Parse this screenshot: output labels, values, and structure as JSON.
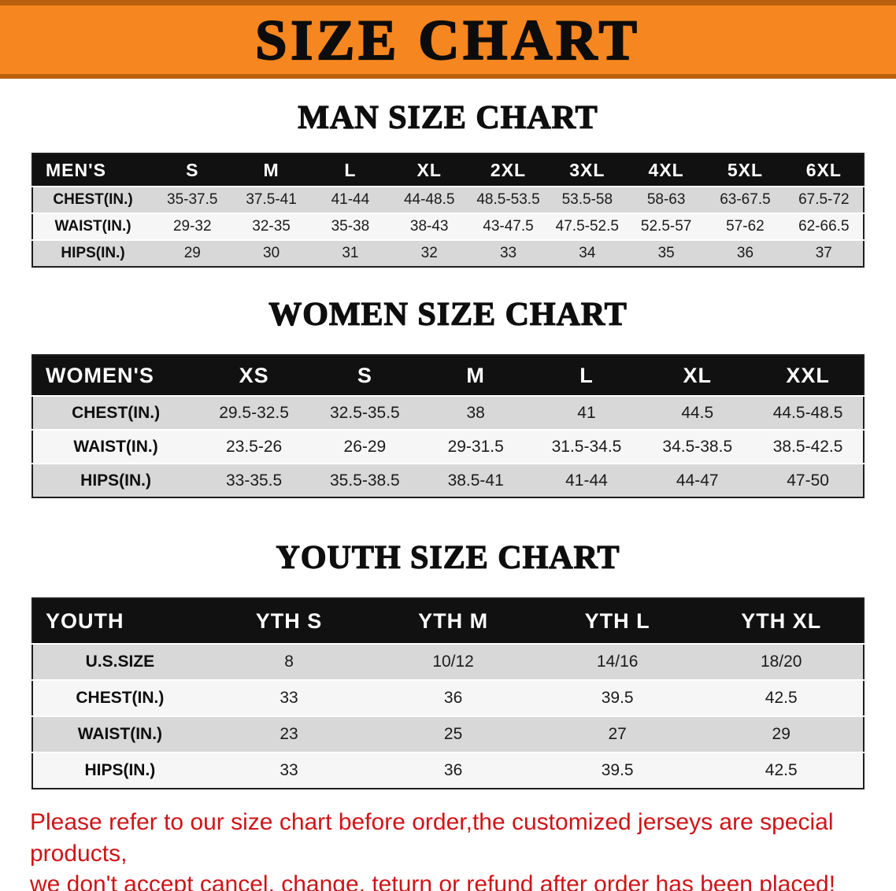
{
  "banner": {
    "title": "SIZE CHART"
  },
  "colors": {
    "banner_bg": "#f6861f",
    "banner_edge": "#b9600e",
    "header_bg": "#111111",
    "row_shade": "#d8d8d8",
    "row_plain": "#f6f6f6",
    "footer_text": "#d01317"
  },
  "chart_data": [
    {
      "type": "table",
      "title": "MAN SIZE CHART",
      "columns": [
        "MEN'S",
        "S",
        "M",
        "L",
        "XL",
        "2XL",
        "3XL",
        "4XL",
        "5XL",
        "6XL"
      ],
      "rows": [
        [
          "CHEST(IN.)",
          "35-37.5",
          "37.5-41",
          "41-44",
          "44-48.5",
          "48.5-53.5",
          "53.5-58",
          "58-63",
          "63-67.5",
          "67.5-72"
        ],
        [
          "WAIST(IN.)",
          "29-32",
          "32-35",
          "35-38",
          "38-43",
          "43-47.5",
          "47.5-52.5",
          "52.5-57",
          "57-62",
          "62-66.5"
        ],
        [
          "HIPS(IN.)",
          "29",
          "30",
          "31",
          "32",
          "33",
          "34",
          "35",
          "36",
          "37"
        ]
      ]
    },
    {
      "type": "table",
      "title": "WOMEN SIZE CHART",
      "columns": [
        "WOMEN'S",
        "XS",
        "S",
        "M",
        "L",
        "XL",
        "XXL"
      ],
      "rows": [
        [
          "CHEST(IN.)",
          "29.5-32.5",
          "32.5-35.5",
          "38",
          "41",
          "44.5",
          "44.5-48.5"
        ],
        [
          "WAIST(IN.)",
          "23.5-26",
          "26-29",
          "29-31.5",
          "31.5-34.5",
          "34.5-38.5",
          "38.5-42.5"
        ],
        [
          "HIPS(IN.)",
          "33-35.5",
          "35.5-38.5",
          "38.5-41",
          "41-44",
          "44-47",
          "47-50"
        ]
      ]
    },
    {
      "type": "table",
      "title": "YOUTH SIZE CHART",
      "columns": [
        "YOUTH",
        "YTH S",
        "YTH M",
        "YTH L",
        "YTH XL"
      ],
      "rows": [
        [
          "U.S.SIZE",
          "8",
          "10/12",
          "14/16",
          "18/20"
        ],
        [
          "CHEST(IN.)",
          "33",
          "36",
          "39.5",
          "42.5"
        ],
        [
          "WAIST(IN.)",
          "23",
          "25",
          "27",
          "29"
        ],
        [
          "HIPS(IN.)",
          "33",
          "36",
          "39.5",
          "42.5"
        ]
      ]
    }
  ],
  "footer": {
    "line1": "Please refer to our size chart before order,the customized jerseys are special products,",
    "line2": "we don't accept cancel, change, teturn or refund after order has been placed!"
  }
}
